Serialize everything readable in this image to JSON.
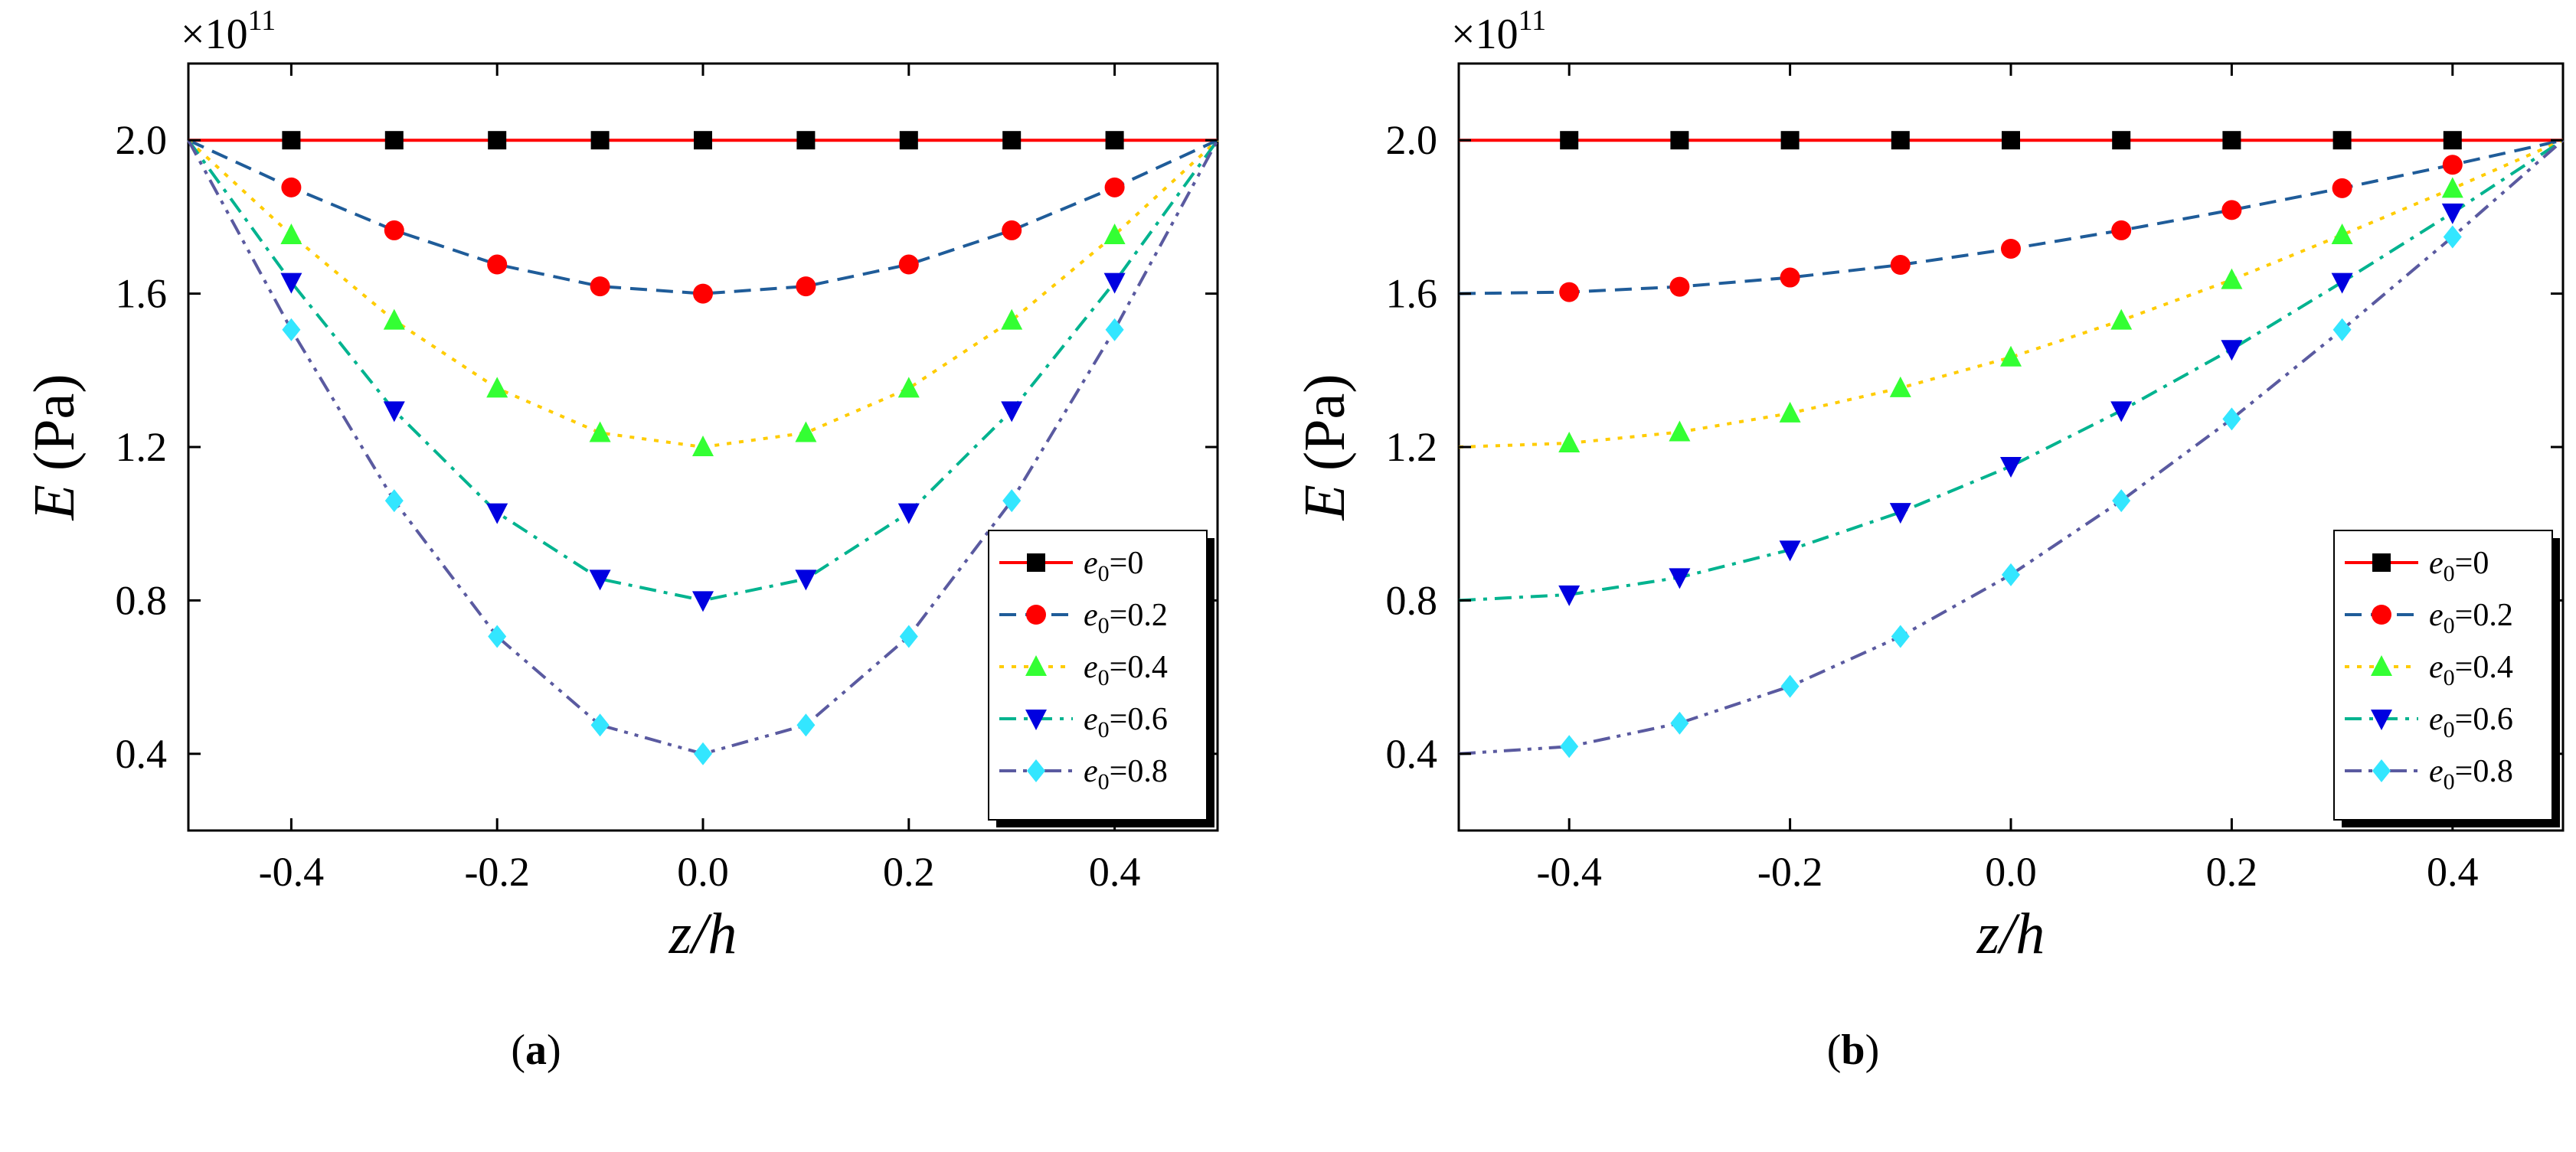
{
  "figure": {
    "exponent_base": "×10",
    "exponent_power": "11"
  },
  "chart_data": [
    {
      "type": "line",
      "panel": "a",
      "caption": "(a)",
      "xlabel": "z/h",
      "ylabel_var": "E",
      "ylabel_unit": "(Pa)",
      "xlim": [
        -0.5,
        0.5
      ],
      "ylim": [
        0.2,
        2.2
      ],
      "xticks": [
        -0.4,
        -0.2,
        0.0,
        0.2,
        0.4
      ],
      "xtick_labels": [
        "-0.4",
        "-0.2",
        "0.0",
        "0.2",
        "0.4"
      ],
      "yticks": [
        0.4,
        0.8,
        1.2,
        1.6,
        2.0
      ],
      "ytick_labels": [
        "0.4",
        "0.8",
        "1.2",
        "1.6",
        "2.0"
      ],
      "y_multiplier": "1e11",
      "legend_position": "bottom-right",
      "x": [
        -0.5,
        -0.4,
        -0.3,
        -0.2,
        -0.1,
        0.0,
        0.1,
        0.2,
        0.3,
        0.4,
        0.5
      ],
      "series": [
        {
          "name": "e0=0",
          "label_sub": "0",
          "label_value": "0",
          "color": "#ff0000",
          "marker_color": "#000000",
          "marker": "square",
          "dash": "solid",
          "values": [
            2.0,
            2.0,
            2.0,
            2.0,
            2.0,
            2.0,
            2.0,
            2.0,
            2.0,
            2.0,
            2.0
          ]
        },
        {
          "name": "e0=0.2",
          "label_sub": "0",
          "label_value": "0.2",
          "color": "#1f5c99",
          "marker_color": "#ff0000",
          "marker": "circle",
          "dash": "dash",
          "values": [
            2.0,
            1.877,
            1.765,
            1.676,
            1.619,
            1.6,
            1.619,
            1.676,
            1.765,
            1.877,
            2.0
          ]
        },
        {
          "name": "e0=0.4",
          "label_sub": "0",
          "label_value": "0.4",
          "color": "#ffcc00",
          "marker_color": "#33ff33",
          "marker": "triangle-up",
          "dash": "dot",
          "values": [
            2.0,
            1.753,
            1.53,
            1.353,
            1.237,
            1.2,
            1.237,
            1.353,
            1.53,
            1.753,
            2.0
          ]
        },
        {
          "name": "e0=0.6",
          "label_sub": "0",
          "label_value": "0.6",
          "color": "#00b38f",
          "marker_color": "#0000e0",
          "marker": "triangle-down",
          "dash": "dashdot",
          "values": [
            2.0,
            1.63,
            1.295,
            1.029,
            0.856,
            0.8,
            0.856,
            1.029,
            1.295,
            1.63,
            2.0
          ]
        },
        {
          "name": "e0=0.8",
          "label_sub": "0",
          "label_value": "0.8",
          "color": "#5a5aa0",
          "marker_color": "#33e6ff",
          "marker": "diamond",
          "dash": "dashdotdot",
          "values": [
            2.0,
            1.506,
            1.06,
            0.706,
            0.475,
            0.4,
            0.475,
            0.706,
            1.06,
            1.506,
            2.0
          ]
        }
      ]
    },
    {
      "type": "line",
      "panel": "b",
      "caption": "(b)",
      "xlabel": "z/h",
      "ylabel_var": "E",
      "ylabel_unit": "(Pa)",
      "xlim": [
        -0.5,
        0.5
      ],
      "ylim": [
        0.2,
        2.2
      ],
      "xticks": [
        -0.4,
        -0.2,
        0.0,
        0.2,
        0.4
      ],
      "xtick_labels": [
        "-0.4",
        "-0.2",
        "0.0",
        "0.2",
        "0.4"
      ],
      "yticks": [
        0.4,
        0.8,
        1.2,
        1.6,
        2.0
      ],
      "ytick_labels": [
        "0.4",
        "0.8",
        "1.2",
        "1.6",
        "2.0"
      ],
      "y_multiplier": "1e11",
      "legend_position": "bottom-right",
      "x": [
        -0.5,
        -0.4,
        -0.3,
        -0.2,
        -0.1,
        0.0,
        0.1,
        0.2,
        0.3,
        0.4,
        0.5
      ],
      "series": [
        {
          "name": "e0=0",
          "label_sub": "0",
          "label_value": "0",
          "color": "#ff0000",
          "marker_color": "#000000",
          "marker": "square",
          "dash": "solid",
          "values": [
            2.0,
            2.0,
            2.0,
            2.0,
            2.0,
            2.0,
            2.0,
            2.0,
            2.0,
            2.0,
            2.0
          ]
        },
        {
          "name": "e0=0.2",
          "label_sub": "0",
          "label_value": "0.2",
          "color": "#1f5c99",
          "marker_color": "#ff0000",
          "marker": "circle",
          "dash": "dash",
          "values": [
            1.6,
            1.604,
            1.618,
            1.642,
            1.675,
            1.717,
            1.765,
            1.818,
            1.875,
            1.936,
            2.0
          ]
        },
        {
          "name": "e0=0.4",
          "label_sub": "0",
          "label_value": "0.4",
          "color": "#ffcc00",
          "marker_color": "#33ff33",
          "marker": "triangle-up",
          "dash": "dot",
          "values": [
            1.2,
            1.21,
            1.239,
            1.288,
            1.354,
            1.434,
            1.53,
            1.636,
            1.753,
            1.874,
            2.0
          ]
        },
        {
          "name": "e0=0.6",
          "label_sub": "0",
          "label_value": "0.6",
          "color": "#00b38f",
          "marker_color": "#0000e0",
          "marker": "triangle-down",
          "dash": "dashdot",
          "values": [
            0.8,
            0.815,
            0.86,
            0.932,
            1.03,
            1.15,
            1.295,
            1.455,
            1.63,
            1.811,
            2.0
          ]
        },
        {
          "name": "e0=0.8",
          "label_sub": "0",
          "label_value": "0.8",
          "color": "#5a5aa0",
          "marker_color": "#33e6ff",
          "marker": "diamond",
          "dash": "dashdotdot",
          "values": [
            0.4,
            0.419,
            0.48,
            0.576,
            0.706,
            0.867,
            1.06,
            1.273,
            1.506,
            1.748,
            2.0
          ]
        }
      ]
    }
  ]
}
